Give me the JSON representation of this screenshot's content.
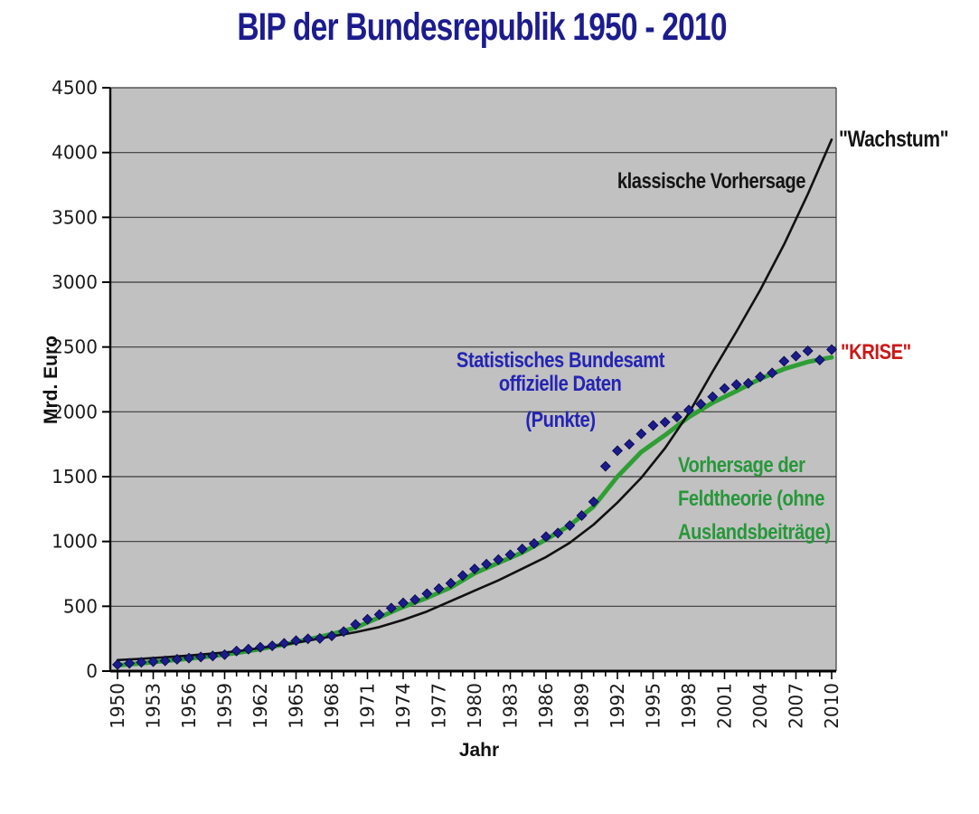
{
  "chart_data": {
    "type": "line",
    "title": "BIP der Bundesrepublik 1950 - 2010",
    "xlabel": "Jahr",
    "ylabel": "Mrd. Euro",
    "xlim": [
      1950,
      2010
    ],
    "ylim": [
      0,
      4500
    ],
    "y_ticks": [
      0,
      500,
      1000,
      1500,
      2000,
      2500,
      3000,
      3500,
      4000,
      4500
    ],
    "x_ticks": [
      1950,
      1953,
      1956,
      1959,
      1962,
      1965,
      1968,
      1971,
      1974,
      1977,
      1980,
      1983,
      1986,
      1989,
      1992,
      1995,
      1998,
      2001,
      2004,
      2007,
      2010
    ],
    "x_minor_tick_step": 1,
    "grid": "horizontal",
    "legend": "none (labeled by in-plot annotations)",
    "plot_bg": "#c1c1c1",
    "grid_color": "#3a3a3a",
    "axis_color": "#000000",
    "series": [
      {
        "name": "Statistisches Bundesamt offizielle Daten (Punkte)",
        "type": "scatter",
        "marker": "diamond",
        "color": "#1b1b8a",
        "x_start": 1950,
        "x_step": 1,
        "values": [
          50,
          60,
          68,
          73,
          79,
          91,
          100,
          109,
          117,
          127,
          155,
          169,
          184,
          195,
          214,
          235,
          249,
          252,
          272,
          305,
          360,
          400,
          436,
          486,
          526,
          551,
          597,
          636,
          678,
          737,
          788,
          825,
          860,
          898,
          942,
          984,
          1037,
          1065,
          1123,
          1200,
          1306,
          1580,
          1700,
          1750,
          1830,
          1895,
          1920,
          1960,
          2014,
          2060,
          2116,
          2180,
          2210,
          2220,
          2270,
          2300,
          2390,
          2430,
          2470,
          2400,
          2480
        ]
      },
      {
        "name": "Vorhersage der Feldtheorie (ohne Auslandsbeiträge)",
        "type": "line",
        "color": "#2f9e35",
        "line_width": 5,
        "x_start": 1950,
        "x_step": 2,
        "values": [
          45,
          60,
          78,
          96,
          116,
          140,
          170,
          205,
          243,
          285,
          335,
          415,
          495,
          565,
          645,
          755,
          835,
          915,
          1015,
          1125,
          1270,
          1500,
          1690,
          1820,
          1960,
          2070,
          2160,
          2255,
          2330,
          2385,
          2420
        ]
      },
      {
        "name": "klassische Vorhersage",
        "type": "line",
        "color": "#111111",
        "line_width": 2.6,
        "x_start": 1950,
        "x_step": 2,
        "values": [
          85,
          95,
          107,
          120,
          135,
          152,
          178,
          205,
          235,
          268,
          300,
          340,
          395,
          460,
          540,
          620,
          700,
          790,
          880,
          990,
          1130,
          1300,
          1490,
          1720,
          1990,
          2310,
          2620,
          2940,
          3290,
          3680,
          4100
        ]
      }
    ],
    "annotations": {
      "klassische_vorhersage": {
        "text": "klassische Vorhersage",
        "color": "#141414"
      },
      "wachstum": {
        "text": "\"Wachstum\"",
        "color": "#141414"
      },
      "bundesamt": {
        "lines": [
          "Statistisches Bundesamt",
          "offizielle Daten",
          "(Punkte)"
        ],
        "color": "#2424b4"
      },
      "feldtheorie": {
        "lines": [
          "Vorhersage der",
          "Feldtheorie (ohne",
          "Auslandsbeiträge)"
        ],
        "color": "#27973a"
      },
      "krise": {
        "text": "\"KRISE\"",
        "color": "#cc1717"
      }
    }
  }
}
